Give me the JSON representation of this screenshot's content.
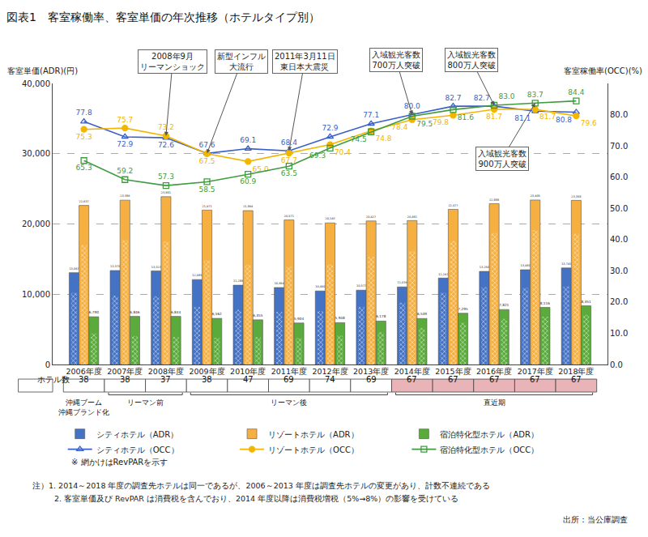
{
  "chart_data": {
    "type": "bar",
    "title": "図表1　客室稼働率、客室単価の年次推移（ホテルタイプ別）",
    "categories": [
      "2006年度",
      "2007年度",
      "2008年度",
      "2009年度",
      "2010年度",
      "2011年度",
      "2012年度",
      "2013年度",
      "2014年度",
      "2015年度",
      "2016年度",
      "2017年度",
      "2018年度"
    ],
    "y_label": "客室単価(ADR)(円)",
    "y2_label": "客室稼働率(OCC)(%)",
    "ylim": [
      0,
      40000
    ],
    "yticks": [
      0,
      {
        "value": 10000,
        "label": "10,000"
      },
      {
        "value": 20000,
        "label": "20,000"
      },
      {
        "value": 30000,
        "label": "30,000"
      },
      {
        "value": 40000,
        "label": "40,000"
      }
    ],
    "y2lim": [
      0,
      90
    ],
    "y2ticks": [
      {
        "value": 0,
        "label": "0.0"
      },
      {
        "value": 10,
        "label": "10.0"
      },
      {
        "value": 20,
        "label": "20.0"
      },
      {
        "value": 30,
        "label": "30.0"
      },
      {
        "value": 40,
        "label": "40.0"
      },
      {
        "value": 50,
        "label": "50.0"
      },
      {
        "value": 60,
        "label": "60.0"
      },
      {
        "value": 70,
        "label": "70.0"
      },
      {
        "value": 80,
        "label": "80.0"
      }
    ],
    "grid": true,
    "legend": "bottom",
    "data_labels": true,
    "series": [
      {
        "name": "シティホテル（ADR）",
        "type": "bar",
        "color": "#4472c4",
        "values": [
          13067,
          13375,
          13323,
          12085,
          11286,
          10954,
          10460,
          10577,
          11039,
          12297,
          13250,
          13480,
          13741
        ],
        "value_labels": [
          "13,067",
          "13,375",
          "13,323",
          "12,085",
          "11,286",
          "10,954",
          "10,460",
          "10,577",
          "11,039",
          "12,297",
          "13,250",
          "13,480",
          "13,741"
        ],
        "revpar": [
          10200,
          9800,
          9700,
          8200,
          7800,
          7500,
          7600,
          8200,
          8800,
          10200,
          11000,
          10900,
          11100
        ]
      },
      {
        "name": "リゾートホテル（ADR）",
        "type": "bar",
        "color": "#f5b041",
        "values": [
          22637,
          23386,
          23881,
          21971,
          21894,
          20571,
          20143,
          20427,
          20481,
          22077,
          22888,
          23405,
          23358
        ],
        "value_labels": [
          "22,637",
          "23,386",
          "23,881",
          "21,971",
          "21,894",
          "20,571",
          "20,143",
          "20,427",
          "20,481",
          "22,077",
          "22,888",
          "23,405",
          "23,358"
        ],
        "revpar": [
          17000,
          17700,
          17500,
          14800,
          14200,
          13900,
          14200,
          15300,
          16100,
          17600,
          18700,
          19100,
          18600
        ]
      },
      {
        "name": "宿泊特化型ホテル（ADR）",
        "type": "bar",
        "color": "#5aab3c",
        "values": [
          6790,
          6846,
          6844,
          6562,
          6355,
          5904,
          5948,
          6178,
          6539,
          7295,
          7821,
          8116,
          8351
        ],
        "value_labels": [
          "6,790",
          "6,846",
          "6,844",
          "6,562",
          "6,355",
          "5,904",
          "5,948",
          "6,178",
          "6,539",
          "7,295",
          "7,821",
          "8,116",
          "8,351"
        ],
        "revpar": [
          4400,
          4050,
          3900,
          3800,
          3900,
          3750,
          4100,
          4600,
          5200,
          5950,
          6500,
          6800,
          7050
        ]
      },
      {
        "name": "シティホテル（OCC）",
        "type": "line",
        "axis": "y2",
        "color": "#3a5fc8",
        "marker": "triangle-up-open",
        "line_style": "solid",
        "values": [
          77.8,
          72.9,
          72.6,
          67.6,
          69.1,
          68.4,
          72.9,
          77.1,
          80.0,
          82.7,
          82.7,
          81.1,
          80.8
        ],
        "value_labels": [
          "77.8",
          "72.9",
          "72.6",
          "67.6",
          "69.1",
          "68.4",
          "72.9",
          "77.1",
          "80.0",
          "82.7",
          "82.7",
          "81.1",
          "80.8"
        ]
      },
      {
        "name": "リゾートホテル（OCC）",
        "type": "line",
        "axis": "y2",
        "color": "#f2b600",
        "marker": "circle",
        "line_style": "solid",
        "values": [
          75.3,
          75.7,
          73.2,
          67.5,
          65.0,
          67.7,
          70.4,
          74.8,
          78.4,
          79.8,
          81.7,
          81.7,
          79.6
        ],
        "value_labels": [
          "75.3",
          "75.7",
          "73.2",
          "67.5",
          "65.0",
          "67.7",
          "70.4",
          "74.8",
          "78.4",
          "79.8",
          "81.7",
          "81.7",
          "79.6"
        ]
      },
      {
        "name": "宿泊特化型ホテル（OCC）",
        "type": "line",
        "axis": "y2",
        "color": "#3f9b3f",
        "marker": "square-open",
        "line_style": "solid",
        "values": [
          65.3,
          59.2,
          57.3,
          58.5,
          60.9,
          63.5,
          69.3,
          74.5,
          79.5,
          81.6,
          83.0,
          83.7,
          84.4
        ],
        "value_labels": [
          "65.3",
          "59.2",
          "57.3",
          "58.5",
          "60.9",
          "63.5",
          "69.3",
          "74.5",
          "79.5",
          "81.6",
          "83.0",
          "83.7",
          "84.4"
        ]
      }
    ],
    "revpar_note": "※ 網かけはRevPARを示す",
    "events": [
      {
        "text": "2008年9月\nリーマンショック",
        "category": "2008年度"
      },
      {
        "text": "新型インフル\n大流行",
        "category": "2009年度"
      },
      {
        "text": "2011年3月11日\n東日本大震災",
        "category": "2011年度"
      },
      {
        "text": "入域観光客数\n700万人突破",
        "category": "2014年度"
      },
      {
        "text": "入域観光客数\n800万人突破",
        "category": "2016年度"
      },
      {
        "text": "入域観光客数\n900万人突破",
        "category": "2017年度"
      }
    ],
    "hotel_counts": {
      "label": "ホテル数",
      "values": [
        38,
        38,
        37,
        38,
        47,
        69,
        74,
        69,
        67,
        67,
        67,
        67,
        67
      ]
    },
    "periods": [
      {
        "label": "沖縄ブーム\n沖縄ブランド化",
        "from": "2006年度",
        "to": "2006年度"
      },
      {
        "label": "リーマン前",
        "from": "2007年度",
        "to": "2008年度"
      },
      {
        "label": "リーマン後",
        "from": "2009年度",
        "to": "2013年度"
      },
      {
        "label": "直近期",
        "from": "2014年度",
        "to": "2018年度"
      }
    ],
    "notes": [
      "注）1. 2014～2018 年度の調査先ホテルは同一であるが、2006～2013 年度は調査先ホテルの変更があり、計数不連続である",
      "2. 客室単価及び RevPAR は消費税を含んでおり、2014 年度以降は消費税増税（5%→8%）の影響を受けている"
    ],
    "source": "出所：当公庫調査"
  }
}
